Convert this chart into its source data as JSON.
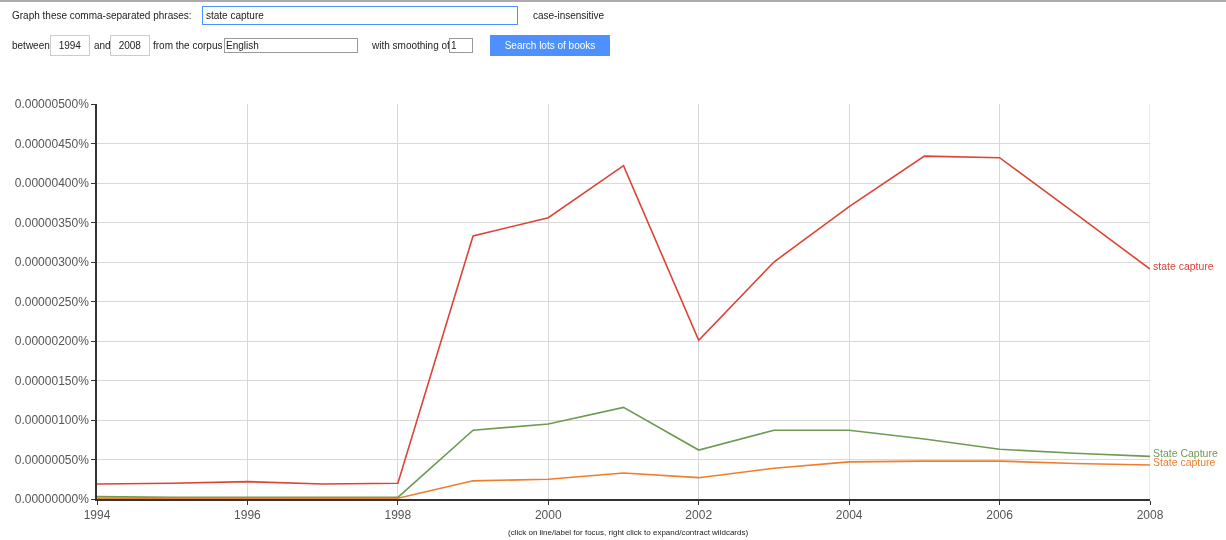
{
  "chart_data": {
    "type": "line",
    "x": [
      1994,
      1995,
      1996,
      1997,
      1998,
      1999,
      2000,
      2001,
      2002,
      2003,
      2004,
      2005,
      2006,
      2007,
      2008
    ],
    "series": [
      {
        "name": "state capture",
        "color": "#db4437",
        "values": [
          1.9e-07,
          2e-07,
          2.2e-07,
          1.9e-07,
          2e-07,
          3.33e-06,
          3.56e-06,
          4.22e-06,
          2.01e-06,
          3e-06,
          3.7e-06,
          4.34e-06,
          4.32e-06,
          3.62e-06,
          2.91e-06
        ]
      },
      {
        "name": "State Capture",
        "color": "#6f9a52",
        "values": [
          3e-08,
          2e-08,
          2e-08,
          2e-08,
          2e-08,
          8.7e-07,
          9.5e-07,
          1.16e-06,
          6.2e-07,
          8.7e-07,
          8.7e-07,
          7.6e-07,
          6.3e-07,
          5.8e-07,
          5.4e-07
        ]
      },
      {
        "name": "State capture",
        "color": "#f07d2c",
        "values": [
          1e-08,
          1e-08,
          1e-08,
          1e-08,
          1e-08,
          2.3e-07,
          2.5e-07,
          3.3e-07,
          2.7e-07,
          3.9e-07,
          4.7e-07,
          4.8e-07,
          4.8e-07,
          4.5e-07,
          4.3e-07
        ]
      }
    ],
    "xlim": [
      1994,
      2008
    ],
    "xticks": [
      1994,
      1996,
      1998,
      2000,
      2002,
      2004,
      2006,
      2008
    ],
    "ylim": [
      0,
      5e-06
    ],
    "yticks": [
      {
        "value": 0,
        "label": "0.00000000%"
      },
      {
        "value": 5e-07,
        "label": "0.00000050%"
      },
      {
        "value": 1e-06,
        "label": "0.00000100%"
      },
      {
        "value": 1.5e-06,
        "label": "0.00000150%"
      },
      {
        "value": 2e-06,
        "label": "0.00000200%"
      },
      {
        "value": 2.5e-06,
        "label": "0.00000250%"
      },
      {
        "value": 3e-06,
        "label": "0.00000300%"
      },
      {
        "value": 3.5e-06,
        "label": "0.00000350%"
      },
      {
        "value": 4e-06,
        "label": "0.00000400%"
      },
      {
        "value": 4.5e-06,
        "label": "0.00000450%"
      },
      {
        "value": 5e-06,
        "label": "0.00000500%"
      }
    ],
    "grid": true,
    "legend": false,
    "marker": "none",
    "line_style": "solid",
    "annotations": [
      "Graph these comma-separated phrases:",
      "state capture",
      "case-insensitive",
      "between",
      "1994",
      "and",
      "2008",
      "from the corpus",
      "English",
      "with smoothing of",
      "1",
      "Search lots of books",
      "(click on line/label for focus, right click to expand/contract wildcards)"
    ]
  }
}
